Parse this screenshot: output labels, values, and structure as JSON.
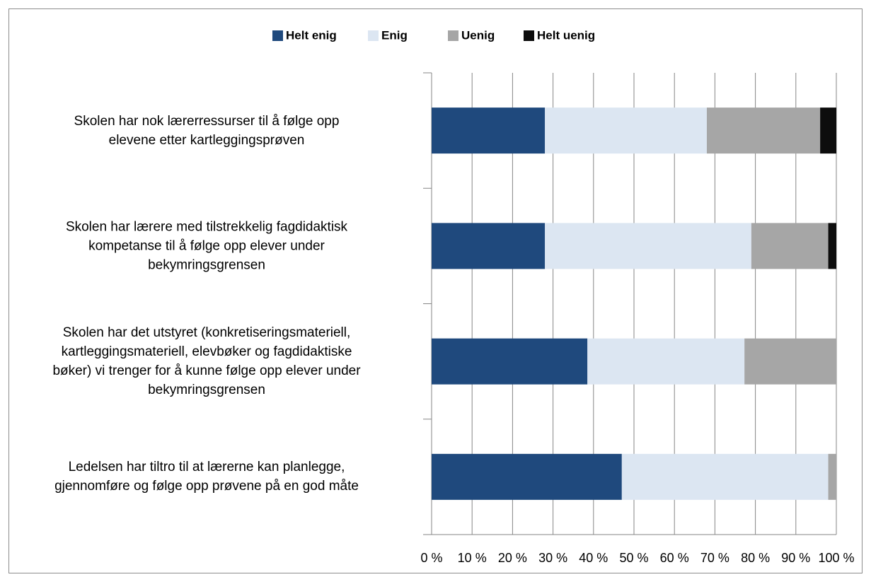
{
  "chart_data": {
    "type": "stacked-barh",
    "categories": [
      "Skolen har nok lærerressurser til å følge opp\nelevene etter kartleggingsprøven",
      "Skolen har lærere med tilstrekkelig fagdidaktisk\nkompetanse til å følge opp elever under\nbekymringsgrensen",
      "Skolen har det utstyret (konkretiseringsmateriell,\nkartleggingsmateriell, elevbøker og fagdidaktiske\nbøker) vi trenger for å kunne følge opp elever under\nbekymringsgrensen",
      "Ledelsen har tiltro til at lærerne kan planlegge,\ngjennomføre og følge opp prøvene på en god måte"
    ],
    "series": [
      {
        "name": "Helt enig",
        "color": "#1f497d",
        "values": [
          28,
          28,
          38.5,
          47
        ]
      },
      {
        "name": "Enig",
        "color": "#dce6f2",
        "values": [
          40,
          51,
          38.8,
          51
        ]
      },
      {
        "name": "Uenig",
        "color": "#a6a6a6",
        "values": [
          28,
          19,
          22.7,
          2
        ]
      },
      {
        "name": "Helt uenig",
        "color": "#0d0d0d",
        "values": [
          4,
          2,
          0,
          0
        ]
      }
    ],
    "xlim": [
      0,
      100
    ],
    "xticks": [
      {
        "value": 0,
        "label": "0 %"
      },
      {
        "value": 10,
        "label": "10 %"
      },
      {
        "value": 20,
        "label": "20 %"
      },
      {
        "value": 30,
        "label": "30 %"
      },
      {
        "value": 40,
        "label": "40 %"
      },
      {
        "value": 50,
        "label": "50 %"
      },
      {
        "value": 60,
        "label": "60 %"
      },
      {
        "value": 70,
        "label": "70 %"
      },
      {
        "value": 80,
        "label": "80 %"
      },
      {
        "value": 90,
        "label": "90 %"
      },
      {
        "value": 100,
        "label": "100 %"
      }
    ],
    "grid": true,
    "legend": "top"
  }
}
